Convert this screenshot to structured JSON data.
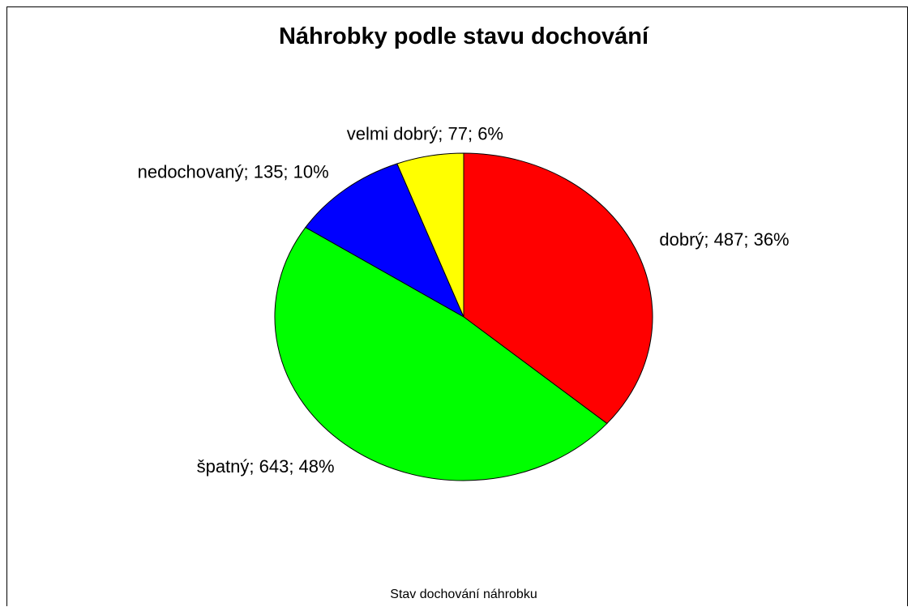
{
  "chart_data": {
    "type": "pie",
    "title": "Náhrobky podle stavu dochování",
    "xlabel": "Stav dochování náhrobku",
    "start": "12 o'clock",
    "direction": "clockwise",
    "slices": [
      {
        "category": "dobrý",
        "value": 487,
        "percent": "36%",
        "label": "dobrý; 487; 36%",
        "color": "#ff0000"
      },
      {
        "category": "špatný",
        "value": 643,
        "percent": "48%",
        "label": "špatný; 643; 48%",
        "color": "#00ff00"
      },
      {
        "category": "nedochovaný",
        "value": 135,
        "percent": "10%",
        "label": "nedochovaný; 135; 10%",
        "color": "#0000ff"
      },
      {
        "category": "velmi dobrý",
        "value": 77,
        "percent": "6%",
        "label": "velmi dobrý; 77; 6%",
        "color": "#ffff00"
      }
    ]
  }
}
